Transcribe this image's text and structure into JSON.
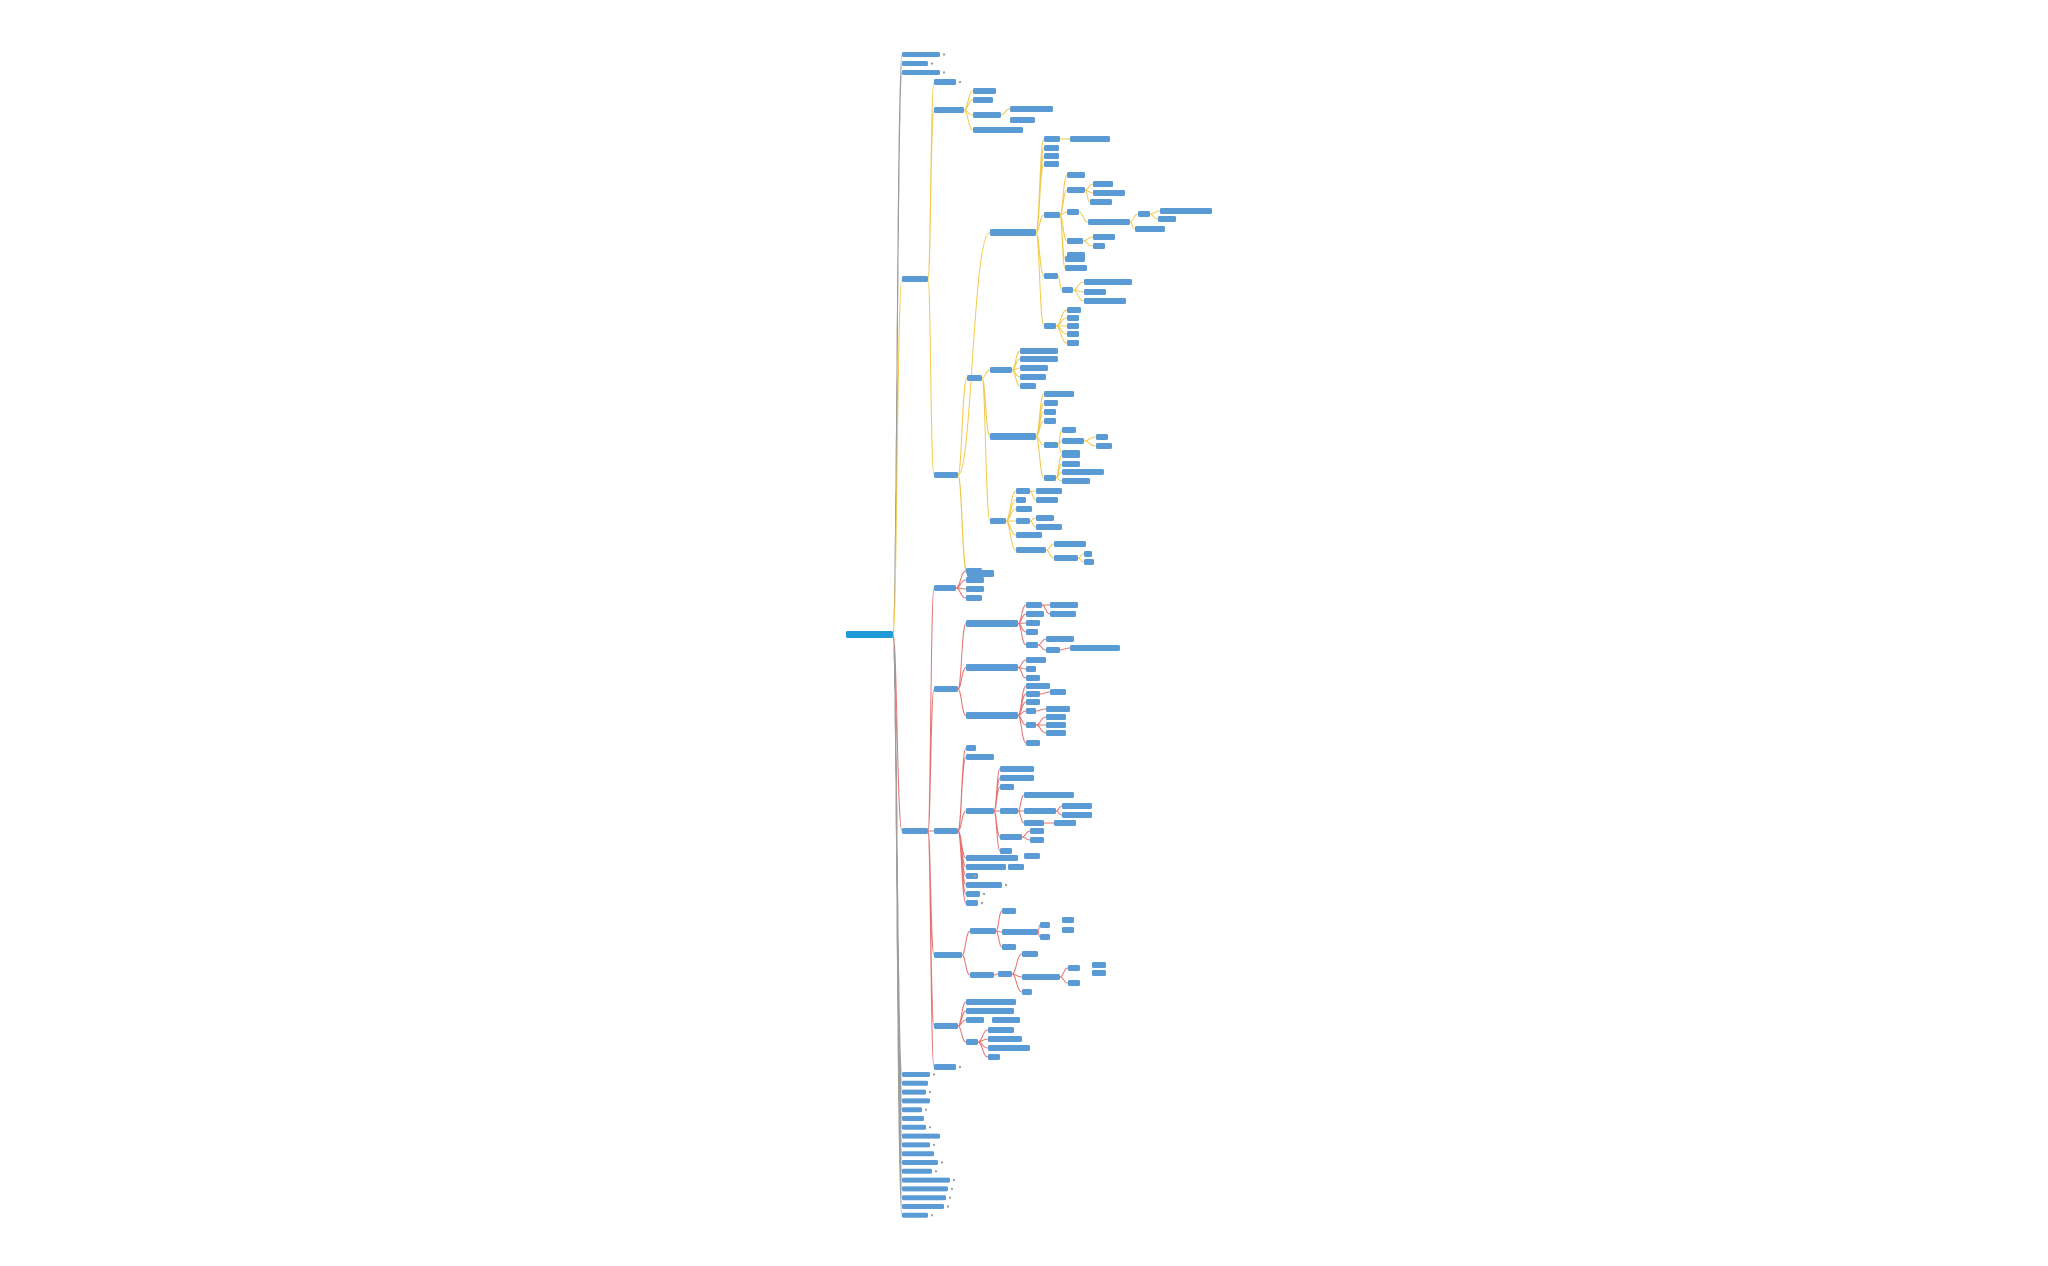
{
  "diagram": {
    "type": "mind-map",
    "text_legible": false,
    "colors": {
      "background": "#ffffff",
      "node_fill": "#5b9bd5",
      "root_fill": "#1e9bd7",
      "branch_gray": "#9e9e9e",
      "branch_yellow": "#f2c94c",
      "branch_red": "#e57373"
    },
    "root": {
      "id": "root",
      "color": "#1e9bd7"
    },
    "nodes": [
      {
        "id": "g1",
        "parent": "root",
        "branch": "gray"
      },
      {
        "id": "g2",
        "parent": "root",
        "branch": "gray"
      },
      {
        "id": "g3",
        "parent": "root",
        "branch": "gray"
      },
      {
        "id": "y-main",
        "parent": "root",
        "branch": "yellow"
      },
      {
        "id": "y-a",
        "parent": "y-main",
        "branch": "yellow"
      },
      {
        "id": "y-b",
        "parent": "y-main",
        "branch": "yellow"
      },
      {
        "id": "y-c",
        "parent": "y-main",
        "branch": "yellow"
      },
      {
        "id": "r-main",
        "parent": "root",
        "branch": "red"
      },
      {
        "id": "r-a",
        "parent": "r-main",
        "branch": "red"
      },
      {
        "id": "r-b",
        "parent": "r-main",
        "branch": "red"
      },
      {
        "id": "r-c",
        "parent": "r-main",
        "branch": "red"
      },
      {
        "id": "r-d",
        "parent": "r-main",
        "branch": "red"
      },
      {
        "id": "r-e",
        "parent": "r-main",
        "branch": "red"
      },
      {
        "id": "r-f",
        "parent": "r-main",
        "branch": "red"
      },
      {
        "id": "b-list",
        "parent": "root",
        "branch": "gray",
        "count": 17
      }
    ]
  }
}
